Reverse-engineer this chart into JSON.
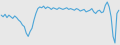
{
  "values": [
    50,
    40,
    55,
    35,
    50,
    40,
    30,
    45,
    35,
    20,
    10,
    -10,
    -20,
    -60,
    -80,
    -50,
    -30,
    20,
    60,
    90,
    100,
    95,
    105,
    90,
    100,
    95,
    85,
    95,
    90,
    85,
    95,
    90,
    85,
    90,
    95,
    85,
    90,
    85,
    80,
    90,
    85,
    75,
    80,
    85,
    70,
    75,
    80,
    90,
    70,
    60,
    75,
    80,
    65,
    70,
    110,
    130,
    100,
    40,
    -80,
    -120,
    60,
    80
  ],
  "line_color": "#4da6d8",
  "bg_color": "#e8e8e8",
  "linewidth": 0.8
}
